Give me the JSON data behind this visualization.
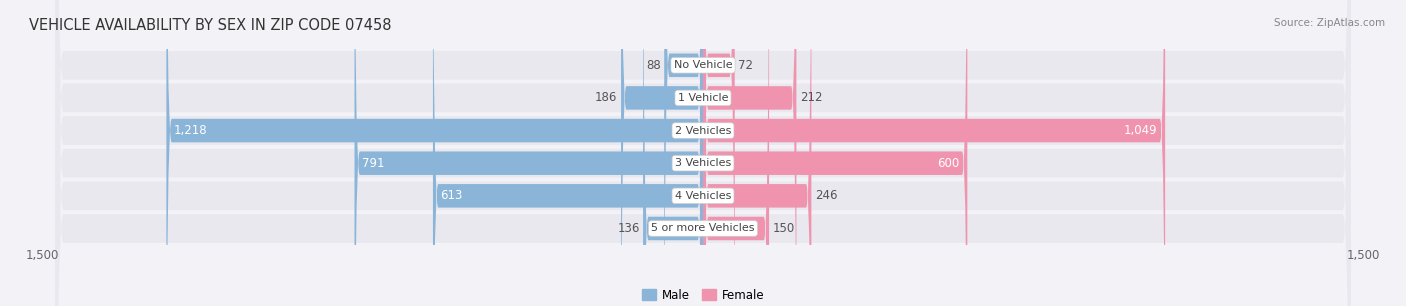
{
  "title": "VEHICLE AVAILABILITY BY SEX IN ZIP CODE 07458",
  "source": "Source: ZipAtlas.com",
  "categories": [
    "No Vehicle",
    "1 Vehicle",
    "2 Vehicles",
    "3 Vehicles",
    "4 Vehicles",
    "5 or more Vehicles"
  ],
  "male_values": [
    88,
    186,
    1218,
    791,
    613,
    136
  ],
  "female_values": [
    72,
    212,
    1049,
    600,
    246,
    150
  ],
  "male_color": "#8ab4d8",
  "female_color": "#f093ae",
  "male_label": "Male",
  "female_label": "Female",
  "xlim": 1500,
  "bar_height": 0.72,
  "row_bg_color": "#e8e8ee",
  "fig_bg_color": "#f2f2f7",
  "title_fontsize": 10.5,
  "label_fontsize": 8.5,
  "tick_fontsize": 8.5,
  "source_fontsize": 7.5,
  "value_color_dark": "#555555",
  "value_color_light": "#ffffff",
  "inside_threshold": 400
}
